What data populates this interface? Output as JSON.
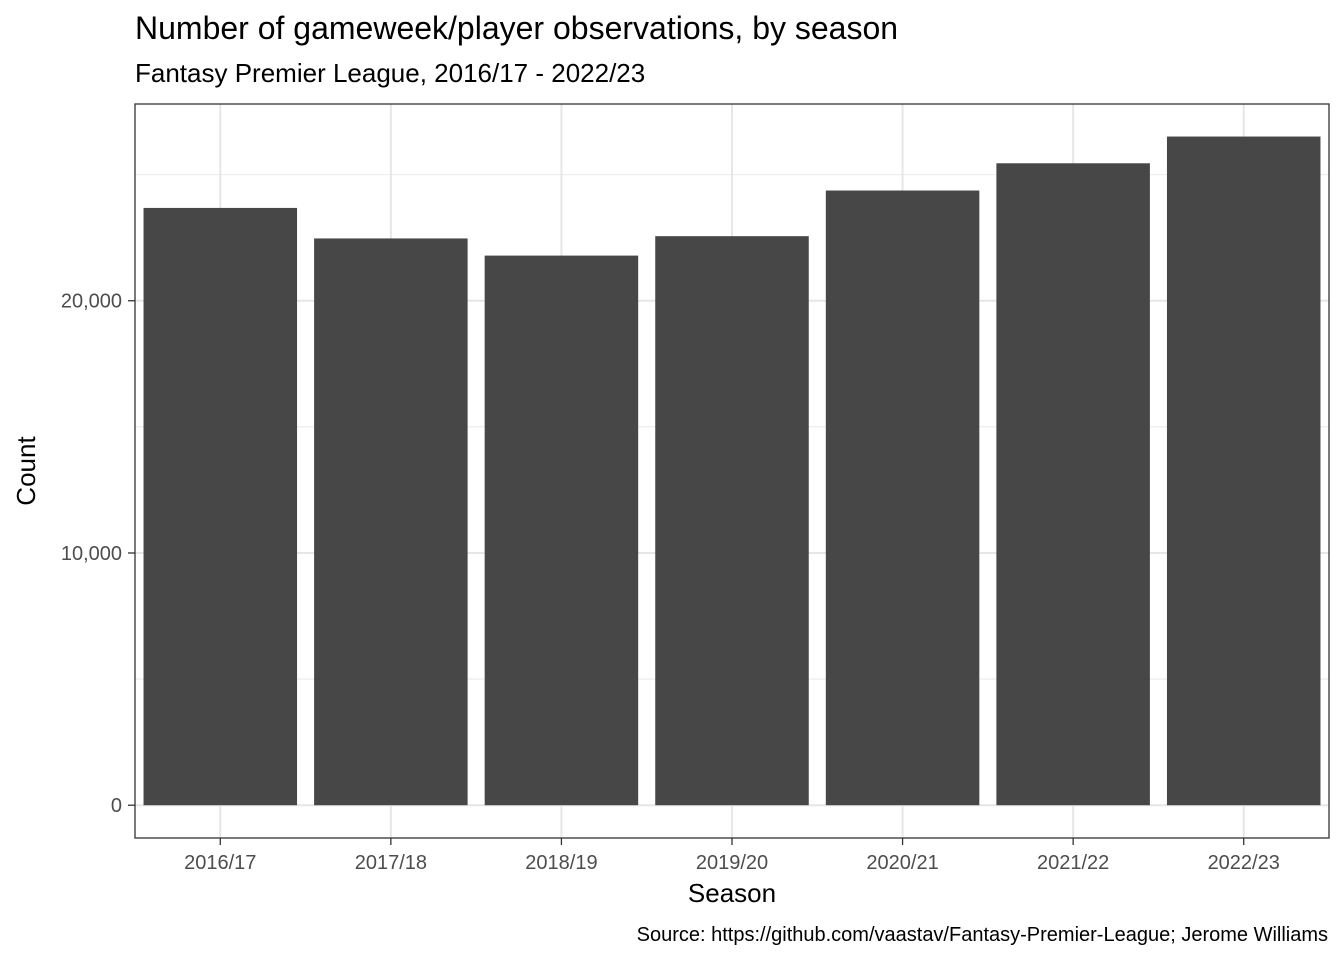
{
  "chart_data": {
    "type": "bar",
    "title": "Number of gameweek/player observations, by season",
    "subtitle": "Fantasy Premier League, 2016/17 - 2022/23",
    "xlabel": "Season",
    "ylabel": "Count",
    "caption": "Source: https://github.com/vaastav/Fantasy-Premier-League; Jerome Williams",
    "categories": [
      "2016/17",
      "2017/18",
      "2018/19",
      "2019/20",
      "2020/21",
      "2021/22",
      "2022/23"
    ],
    "values": [
      23680,
      22470,
      21790,
      22560,
      24370,
      25450,
      26510
    ],
    "ylim": [
      -1300,
      27800
    ],
    "yticks": [
      0,
      10000,
      20000
    ],
    "ytick_labels": [
      "0",
      "10,000",
      "20,000"
    ],
    "grid": true,
    "bar_color": "#474747"
  }
}
